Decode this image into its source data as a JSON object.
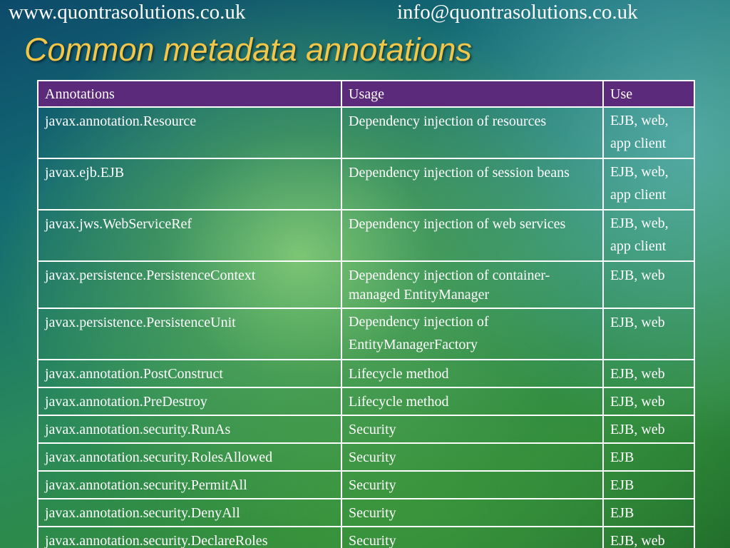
{
  "header": {
    "website": "www.quontrasolutions.co.uk",
    "email": "info@quontrasolutions.co.uk"
  },
  "slide": {
    "title": "Common metadata annotations"
  },
  "table": {
    "columns": [
      "Annotations",
      "Usage",
      "Use"
    ],
    "rows": [
      [
        "javax.annotation.Resource",
        "Dependency injection of resources",
        "EJB, web, app client"
      ],
      [
        "javax.ejb.EJB",
        "Dependency injection of session beans",
        "EJB, web, app client"
      ],
      [
        "javax.jws.WebServiceRef",
        "Dependency injection of web services",
        "EJB, web, app client"
      ],
      [
        "javax.persistence.PersistenceContext",
        "Dependency injection of container-managed EntityManager",
        "EJB, web"
      ],
      [
        "javax.persistence.PersistenceUnit",
        "Dependency injection of EntityManagerFactory",
        "EJB, web"
      ],
      [
        "javax.annotation.PostConstruct",
        "Lifecycle method",
        "EJB, web"
      ],
      [
        "javax.annotation.PreDestroy",
        "Lifecycle method",
        "EJB, web"
      ],
      [
        "javax.annotation.security.RunAs",
        "Security",
        "EJB, web"
      ],
      [
        "javax.annotation.security.RolesAllowed",
        "Security",
        "EJB"
      ],
      [
        "javax.annotation.security.PermitAll",
        "Security",
        "EJB"
      ],
      [
        "javax.annotation.security.DenyAll",
        "Security",
        "EJB"
      ],
      [
        "javax.annotation.security.DeclareRoles",
        "Security",
        "EJB, web"
      ]
    ]
  },
  "colors": {
    "title": "#f2c649",
    "header_row": "#5b2a7a",
    "text": "#ffffff",
    "border": "#ffffff"
  }
}
